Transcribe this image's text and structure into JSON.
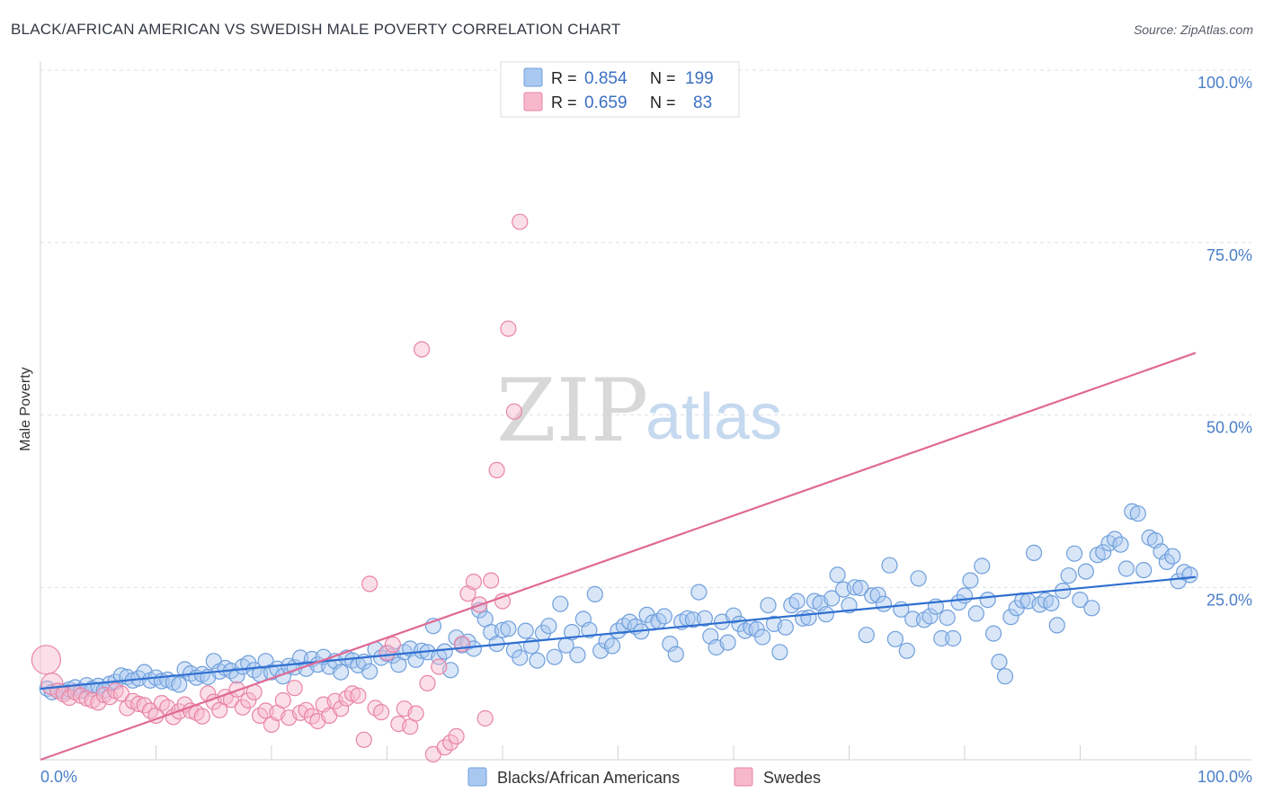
{
  "header": {
    "title": "BLACK/AFRICAN AMERICAN VS SWEDISH MALE POVERTY CORRELATION CHART",
    "source": "Source: ZipAtlas.com"
  },
  "watermark": {
    "zip": "ZIP",
    "atlas": "atlas"
  },
  "legend_top": {
    "rows": [
      {
        "r_label": "R =",
        "r_value": "0.854",
        "n_label": "N =",
        "n_value": "199",
        "color": "#a9c8f0",
        "stroke": "#6f9fdc"
      },
      {
        "r_label": "R =",
        "r_value": "0.659",
        "n_label": "N =",
        "n_value": "83",
        "color": "#f7b8cb",
        "stroke": "#e884a6"
      }
    ]
  },
  "legend_bottom": {
    "items": [
      {
        "label": "Blacks/African Americans",
        "color": "#a9c8f0",
        "stroke": "#6f9fdc"
      },
      {
        "label": "Swedes",
        "color": "#f7b8cb",
        "stroke": "#e884a6"
      }
    ]
  },
  "chart_data": {
    "type": "scatter",
    "title": "BLACK/AFRICAN AMERICAN VS SWEDISH MALE POVERTY CORRELATION CHART",
    "xlabel": "",
    "ylabel": "Male Poverty",
    "xlim": [
      0,
      100
    ],
    "ylim": [
      0,
      100
    ],
    "x_ticks": [
      "0.0%",
      "100.0%"
    ],
    "y_ticks": [
      "25.0%",
      "50.0%",
      "75.0%",
      "100.0%"
    ],
    "grid": true,
    "legend_position": "bottom",
    "series": [
      {
        "name": "Blacks/African Americans",
        "color": "#a9c8f0",
        "stroke": "#6f9fdc",
        "trend": {
          "x": [
            0,
            100
          ],
          "y": [
            10.3,
            26.5
          ],
          "color": "#2f6fd0"
        },
        "points": [
          [
            0.6,
            10.3
          ],
          [
            1,
            9.8
          ],
          [
            1.5,
            10
          ],
          [
            2,
            9.9
          ],
          [
            2.5,
            10.2
          ],
          [
            3,
            10.5
          ],
          [
            3.5,
            10
          ],
          [
            4,
            10.8
          ],
          [
            4.5,
            10.3
          ],
          [
            5,
            10.7
          ],
          [
            5.5,
            10
          ],
          [
            6,
            11
          ],
          [
            6.5,
            11.3
          ],
          [
            7,
            12.2
          ],
          [
            7.5,
            12
          ],
          [
            8,
            11.5
          ],
          [
            8.5,
            11.8
          ],
          [
            9,
            12.7
          ],
          [
            9.5,
            11.5
          ],
          [
            10,
            11.9
          ],
          [
            10.5,
            11.4
          ],
          [
            11,
            11.6
          ],
          [
            11.5,
            11.2
          ],
          [
            12,
            10.9
          ],
          [
            12.5,
            13.1
          ],
          [
            13,
            12.5
          ],
          [
            13.5,
            11.9
          ],
          [
            14,
            12.4
          ],
          [
            14.5,
            12
          ],
          [
            15,
            14.3
          ],
          [
            15.5,
            12.8
          ],
          [
            16,
            13.3
          ],
          [
            16.5,
            12.9
          ],
          [
            17,
            12.2
          ],
          [
            17.5,
            13.5
          ],
          [
            18,
            14
          ],
          [
            18.5,
            13
          ],
          [
            19,
            12.4
          ],
          [
            19.5,
            14.3
          ],
          [
            20,
            12.7
          ],
          [
            20.5,
            13.2
          ],
          [
            21,
            12.1
          ],
          [
            21.5,
            13.6
          ],
          [
            22,
            13.4
          ],
          [
            22.5,
            14.8
          ],
          [
            23,
            13.2
          ],
          [
            23.5,
            14.6
          ],
          [
            24,
            13.8
          ],
          [
            24.5,
            14.9
          ],
          [
            25,
            13.5
          ],
          [
            25.5,
            14.3
          ],
          [
            26,
            12.7
          ],
          [
            26.5,
            14.8
          ],
          [
            27,
            14.4
          ],
          [
            27.5,
            13.7
          ],
          [
            28,
            14.2
          ],
          [
            28.5,
            12.8
          ],
          [
            29,
            16
          ],
          [
            29.5,
            14.8
          ],
          [
            30,
            15.4
          ],
          [
            30.5,
            15.1
          ],
          [
            31,
            13.8
          ],
          [
            31.5,
            15.6
          ],
          [
            32,
            16.1
          ],
          [
            32.5,
            14.5
          ],
          [
            33,
            15.8
          ],
          [
            33.5,
            15.6
          ],
          [
            34,
            19.4
          ],
          [
            34.5,
            14.9
          ],
          [
            35,
            15.7
          ],
          [
            35.5,
            13
          ],
          [
            36,
            17.7
          ],
          [
            36.5,
            16.6
          ],
          [
            37,
            17.1
          ],
          [
            37.5,
            16.1
          ],
          [
            38,
            21.7
          ],
          [
            38.5,
            20.4
          ],
          [
            39,
            18.5
          ],
          [
            39.5,
            16.8
          ],
          [
            40,
            18.8
          ],
          [
            40.5,
            19
          ],
          [
            41,
            15.9
          ],
          [
            41.5,
            14.8
          ],
          [
            42,
            18.7
          ],
          [
            42.5,
            16.5
          ],
          [
            43,
            14.4
          ],
          [
            43.5,
            18.4
          ],
          [
            44,
            19.4
          ],
          [
            44.5,
            14.9
          ],
          [
            45,
            22.6
          ],
          [
            45.5,
            16.6
          ],
          [
            46,
            18.5
          ],
          [
            46.5,
            15.2
          ],
          [
            47,
            20.4
          ],
          [
            47.5,
            18.8
          ],
          [
            48,
            24
          ],
          [
            48.5,
            15.8
          ],
          [
            49,
            17.2
          ],
          [
            49.5,
            16.5
          ],
          [
            50,
            18.7
          ],
          [
            50.5,
            19.4
          ],
          [
            51,
            20
          ],
          [
            51.5,
            19.3
          ],
          [
            52,
            18.6
          ],
          [
            52.5,
            21
          ],
          [
            53,
            19.9
          ],
          [
            53.5,
            20.1
          ],
          [
            54,
            20.8
          ],
          [
            54.5,
            16.8
          ],
          [
            55,
            15.3
          ],
          [
            55.5,
            20
          ],
          [
            56,
            20.5
          ],
          [
            56.5,
            20.3
          ],
          [
            57,
            24.3
          ],
          [
            57.5,
            20.5
          ],
          [
            58,
            17.9
          ],
          [
            58.5,
            16.3
          ],
          [
            59,
            20
          ],
          [
            59.5,
            17
          ],
          [
            60,
            20.9
          ],
          [
            60.5,
            19.7
          ],
          [
            61,
            18.7
          ],
          [
            61.5,
            19.2
          ],
          [
            62,
            18.9
          ],
          [
            62.5,
            17.8
          ],
          [
            63,
            22.4
          ],
          [
            63.5,
            19.7
          ],
          [
            64,
            15.6
          ],
          [
            64.5,
            19.2
          ],
          [
            65,
            22.4
          ],
          [
            65.5,
            23
          ],
          [
            66,
            20.5
          ],
          [
            66.5,
            20.6
          ],
          [
            67,
            23
          ],
          [
            67.5,
            22.7
          ],
          [
            68,
            21.1
          ],
          [
            68.5,
            23.4
          ],
          [
            69,
            26.8
          ],
          [
            69.5,
            24.7
          ],
          [
            70,
            22.4
          ],
          [
            70.5,
            25
          ],
          [
            71,
            24.9
          ],
          [
            71.5,
            18.1
          ],
          [
            72,
            23.8
          ],
          [
            72.5,
            23.9
          ],
          [
            73,
            22.6
          ],
          [
            73.5,
            28.2
          ],
          [
            74,
            17.5
          ],
          [
            74.5,
            21.8
          ],
          [
            75,
            15.8
          ],
          [
            75.5,
            20.4
          ],
          [
            76,
            26.3
          ],
          [
            76.5,
            20.3
          ],
          [
            77,
            20.8
          ],
          [
            77.5,
            22.2
          ],
          [
            78,
            17.6
          ],
          [
            78.5,
            20.6
          ],
          [
            79,
            17.6
          ],
          [
            79.5,
            22.8
          ],
          [
            80,
            23.8
          ],
          [
            80.5,
            26
          ],
          [
            81,
            21.2
          ],
          [
            81.5,
            28.1
          ],
          [
            82,
            23.2
          ],
          [
            82.5,
            18.3
          ],
          [
            83,
            14.2
          ],
          [
            83.5,
            12.1
          ],
          [
            84,
            20.7
          ],
          [
            84.5,
            22
          ],
          [
            85,
            23.1
          ],
          [
            85.5,
            23
          ],
          [
            86,
            30
          ],
          [
            86.5,
            22.5
          ],
          [
            87,
            23.1
          ],
          [
            87.5,
            22.7
          ],
          [
            88,
            19.5
          ],
          [
            88.5,
            24.5
          ],
          [
            89,
            26.7
          ],
          [
            89.5,
            29.9
          ],
          [
            90,
            23.2
          ],
          [
            90.5,
            27.3
          ],
          [
            91,
            22
          ],
          [
            91.5,
            29.7
          ],
          [
            92,
            30.1
          ],
          [
            92.5,
            31.4
          ],
          [
            93,
            32
          ],
          [
            93.5,
            31.2
          ],
          [
            94,
            27.7
          ],
          [
            94.5,
            36
          ],
          [
            95,
            35.7
          ],
          [
            95.5,
            27.5
          ],
          [
            96,
            32.2
          ],
          [
            96.5,
            31.8
          ],
          [
            97,
            30.2
          ],
          [
            97.5,
            28.7
          ],
          [
            98,
            29.5
          ],
          [
            98.5,
            25.9
          ],
          [
            99,
            27.2
          ],
          [
            99.5,
            26.8
          ]
        ]
      },
      {
        "name": "Swedes",
        "color": "#f7b8cb",
        "stroke": "#e884a6",
        "trend": {
          "x": [
            0,
            100
          ],
          "y": [
            0.0,
            59.0
          ],
          "color": "#e06a95"
        },
        "points": [
          [
            0.5,
            14.5
          ],
          [
            1,
            11
          ],
          [
            1.5,
            10
          ],
          [
            2,
            9.5
          ],
          [
            2.5,
            9
          ],
          [
            3,
            9.8
          ],
          [
            3.5,
            9.3
          ],
          [
            4,
            8.9
          ],
          [
            4.5,
            8.6
          ],
          [
            5,
            8.3
          ],
          [
            5.5,
            9.4
          ],
          [
            6,
            9.1
          ],
          [
            6.5,
            10
          ],
          [
            7,
            9.6
          ],
          [
            7.5,
            7.5
          ],
          [
            8,
            8.5
          ],
          [
            8.5,
            8.1
          ],
          [
            9,
            7.9
          ],
          [
            9.5,
            7.1
          ],
          [
            10,
            6.4
          ],
          [
            10.5,
            8.2
          ],
          [
            11,
            7.6
          ],
          [
            11.5,
            6.2
          ],
          [
            12,
            7
          ],
          [
            12.5,
            8
          ],
          [
            13,
            7.1
          ],
          [
            13.5,
            6.8
          ],
          [
            14,
            6.3
          ],
          [
            14.5,
            9.6
          ],
          [
            15,
            8.4
          ],
          [
            15.5,
            7.2
          ],
          [
            16,
            9.1
          ],
          [
            16.5,
            8.7
          ],
          [
            17,
            10.2
          ],
          [
            17.5,
            7.6
          ],
          [
            18,
            8.6
          ],
          [
            18.5,
            9.8
          ],
          [
            19,
            6.4
          ],
          [
            19.5,
            7.1
          ],
          [
            20,
            5.1
          ],
          [
            20.5,
            6.8
          ],
          [
            21,
            8.6
          ],
          [
            21.5,
            6.1
          ],
          [
            22,
            10.4
          ],
          [
            22.5,
            6.8
          ],
          [
            23,
            7.2
          ],
          [
            23.5,
            6.3
          ],
          [
            24,
            5.6
          ],
          [
            24.5,
            8
          ],
          [
            25,
            6.4
          ],
          [
            25.5,
            8.5
          ],
          [
            26,
            7.4
          ],
          [
            26.5,
            8.9
          ],
          [
            27,
            9.6
          ],
          [
            27.5,
            9.3
          ],
          [
            28,
            2.9
          ],
          [
            28.5,
            25.5
          ],
          [
            29,
            7.5
          ],
          [
            29.5,
            6.9
          ],
          [
            30,
            15.5
          ],
          [
            30.5,
            16.7
          ],
          [
            31,
            5.2
          ],
          [
            31.5,
            7.4
          ],
          [
            32,
            4.8
          ],
          [
            32.5,
            6.7
          ],
          [
            33,
            59.5
          ],
          [
            33.5,
            11.1
          ],
          [
            34,
            0.8
          ],
          [
            34.5,
            13.5
          ],
          [
            35,
            1.8
          ],
          [
            35.5,
            2.5
          ],
          [
            36,
            3.4
          ],
          [
            36.5,
            16.8
          ],
          [
            37,
            24.1
          ],
          [
            37.5,
            25.8
          ],
          [
            38,
            22.5
          ],
          [
            38.5,
            6
          ],
          [
            39,
            26
          ],
          [
            39.5,
            42
          ],
          [
            40,
            23
          ],
          [
            40.5,
            62.5
          ],
          [
            41,
            50.5
          ],
          [
            41.5,
            78
          ]
        ]
      }
    ]
  }
}
